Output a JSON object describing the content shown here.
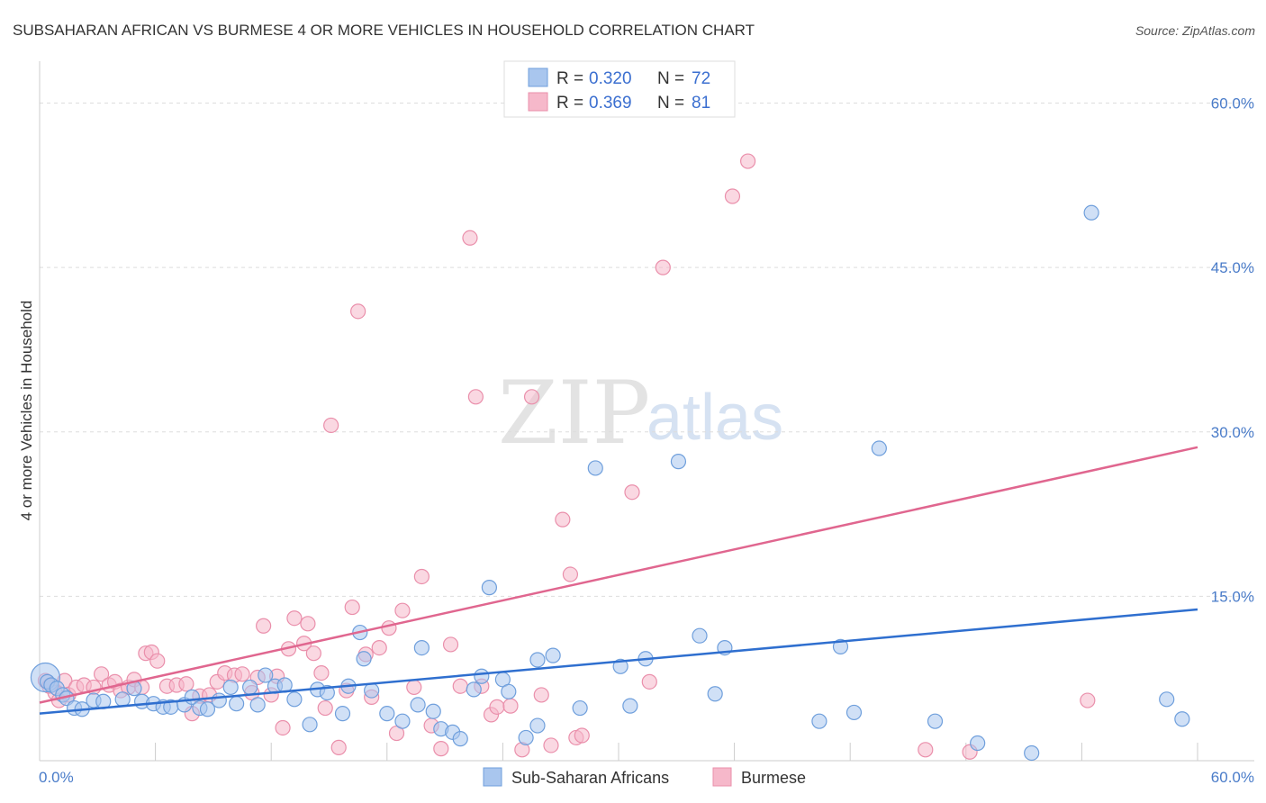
{
  "header": {
    "title": "SUBSAHARAN AFRICAN VS BURMESE 4 OR MORE VEHICLES IN HOUSEHOLD CORRELATION CHART",
    "source": "Source: ZipAtlas.com"
  },
  "watermark": {
    "zip": "ZIP",
    "atlas": "atlas"
  },
  "legend": {
    "r_label": "R =",
    "n_label": "N =",
    "rows": [
      {
        "r": "0.320",
        "n": "72",
        "color": "#a9c6ee"
      },
      {
        "r": "0.369",
        "n": "81",
        "color": "#f6b8ca"
      }
    ]
  },
  "bottom_legend": {
    "items": [
      {
        "label": "Sub-Saharan Africans",
        "color": "#a9c6ee"
      },
      {
        "label": "Burmese",
        "color": "#f6b8ca"
      }
    ]
  },
  "colors": {
    "series1_fill": "#a9c6ee",
    "series1_stroke": "#6f9fdc",
    "series1_line": "#2f6fcf",
    "series2_fill": "#f6b8ca",
    "series2_stroke": "#ea8fab",
    "series2_line": "#e0668f",
    "grid": "#dddddd",
    "tick_label": "#4a7cc9"
  },
  "chart_data": {
    "type": "scatter",
    "title": "SUBSAHARAN AFRICAN VS BURMESE 4 OR MORE VEHICLES IN HOUSEHOLD CORRELATION CHART",
    "xlabel": "",
    "ylabel": "4 or more Vehicles in Household",
    "xlim": [
      0,
      60
    ],
    "ylim": [
      0,
      63
    ],
    "x_tick_labels": [
      "0.0%",
      "60.0%"
    ],
    "y_ticks": [
      15,
      30,
      45,
      60
    ],
    "y_tick_labels": [
      "15.0%",
      "30.0%",
      "45.0%",
      "60.0%"
    ],
    "grid": true,
    "legend_position": "top-center",
    "series": [
      {
        "name": "Sub-Saharan Africans",
        "r": 0.32,
        "n": 72,
        "trend": {
          "x": [
            0,
            60
          ],
          "y": [
            4.3,
            13.8
          ]
        },
        "points": [
          {
            "x": 0.3,
            "y": 7.6,
            "big": true
          },
          {
            "x": 0.4,
            "y": 7.2
          },
          {
            "x": 0.6,
            "y": 6.9
          },
          {
            "x": 0.9,
            "y": 6.6
          },
          {
            "x": 1.2,
            "y": 6.0
          },
          {
            "x": 1.4,
            "y": 5.7
          },
          {
            "x": 1.8,
            "y": 4.8
          },
          {
            "x": 2.2,
            "y": 4.7
          },
          {
            "x": 2.8,
            "y": 5.5
          },
          {
            "x": 3.3,
            "y": 5.4
          },
          {
            "x": 4.3,
            "y": 5.6
          },
          {
            "x": 4.9,
            "y": 6.6
          },
          {
            "x": 5.3,
            "y": 5.4
          },
          {
            "x": 5.9,
            "y": 5.2
          },
          {
            "x": 6.4,
            "y": 4.9
          },
          {
            "x": 6.8,
            "y": 4.9
          },
          {
            "x": 7.5,
            "y": 5.1
          },
          {
            "x": 7.9,
            "y": 5.8
          },
          {
            "x": 8.3,
            "y": 4.8
          },
          {
            "x": 8.7,
            "y": 4.7
          },
          {
            "x": 9.3,
            "y": 5.5
          },
          {
            "x": 9.9,
            "y": 6.7
          },
          {
            "x": 10.2,
            "y": 5.2
          },
          {
            "x": 10.9,
            "y": 6.7
          },
          {
            "x": 11.3,
            "y": 5.1
          },
          {
            "x": 11.7,
            "y": 7.8
          },
          {
            "x": 12.2,
            "y": 6.8
          },
          {
            "x": 12.7,
            "y": 6.9
          },
          {
            "x": 13.2,
            "y": 5.6
          },
          {
            "x": 14.0,
            "y": 3.3
          },
          {
            "x": 14.4,
            "y": 6.5
          },
          {
            "x": 14.9,
            "y": 6.2
          },
          {
            "x": 15.7,
            "y": 4.3
          },
          {
            "x": 16.0,
            "y": 6.8
          },
          {
            "x": 16.6,
            "y": 11.7
          },
          {
            "x": 16.8,
            "y": 9.3
          },
          {
            "x": 17.2,
            "y": 6.4
          },
          {
            "x": 18.0,
            "y": 4.3
          },
          {
            "x": 18.8,
            "y": 3.6
          },
          {
            "x": 19.6,
            "y": 5.1
          },
          {
            "x": 19.8,
            "y": 10.3
          },
          {
            "x": 20.4,
            "y": 4.5
          },
          {
            "x": 20.8,
            "y": 2.9
          },
          {
            "x": 21.4,
            "y": 2.6
          },
          {
            "x": 21.8,
            "y": 2.0
          },
          {
            "x": 22.5,
            "y": 6.5
          },
          {
            "x": 22.9,
            "y": 7.7
          },
          {
            "x": 23.3,
            "y": 15.8
          },
          {
            "x": 24.0,
            "y": 7.4
          },
          {
            "x": 24.3,
            "y": 6.3
          },
          {
            "x": 25.2,
            "y": 2.1
          },
          {
            "x": 25.8,
            "y": 3.2
          },
          {
            "x": 25.8,
            "y": 9.2
          },
          {
            "x": 26.6,
            "y": 9.6
          },
          {
            "x": 28.0,
            "y": 4.8
          },
          {
            "x": 28.8,
            "y": 26.7
          },
          {
            "x": 30.1,
            "y": 8.6
          },
          {
            "x": 30.6,
            "y": 5.0
          },
          {
            "x": 31.4,
            "y": 9.3
          },
          {
            "x": 33.1,
            "y": 27.3
          },
          {
            "x": 34.2,
            "y": 11.4
          },
          {
            "x": 35.0,
            "y": 6.1
          },
          {
            "x": 35.5,
            "y": 10.3
          },
          {
            "x": 40.4,
            "y": 3.6
          },
          {
            "x": 41.5,
            "y": 10.4
          },
          {
            "x": 42.2,
            "y": 4.4
          },
          {
            "x": 43.5,
            "y": 28.5
          },
          {
            "x": 46.4,
            "y": 3.6
          },
          {
            "x": 48.6,
            "y": 1.6
          },
          {
            "x": 51.4,
            "y": 0.7
          },
          {
            "x": 54.5,
            "y": 50.0
          },
          {
            "x": 58.4,
            "y": 5.6
          },
          {
            "x": 59.2,
            "y": 3.8
          }
        ]
      },
      {
        "name": "Burmese",
        "r": 0.369,
        "n": 81,
        "trend": {
          "x": [
            0,
            60
          ],
          "y": [
            5.3,
            28.6
          ]
        },
        "points": [
          {
            "x": 0.3,
            "y": 7.3
          },
          {
            "x": 0.5,
            "y": 6.8
          },
          {
            "x": 0.8,
            "y": 6.2
          },
          {
            "x": 1.0,
            "y": 5.5
          },
          {
            "x": 1.3,
            "y": 7.3
          },
          {
            "x": 1.5,
            "y": 6.0
          },
          {
            "x": 1.9,
            "y": 6.7
          },
          {
            "x": 2.3,
            "y": 6.9
          },
          {
            "x": 2.8,
            "y": 6.7
          },
          {
            "x": 3.2,
            "y": 7.9
          },
          {
            "x": 3.6,
            "y": 6.9
          },
          {
            "x": 3.9,
            "y": 7.2
          },
          {
            "x": 4.2,
            "y": 6.4
          },
          {
            "x": 4.6,
            "y": 6.7
          },
          {
            "x": 4.9,
            "y": 7.4
          },
          {
            "x": 5.3,
            "y": 6.7
          },
          {
            "x": 5.5,
            "y": 9.8
          },
          {
            "x": 5.8,
            "y": 9.9
          },
          {
            "x": 6.1,
            "y": 9.1
          },
          {
            "x": 6.6,
            "y": 6.8
          },
          {
            "x": 7.1,
            "y": 6.9
          },
          {
            "x": 7.6,
            "y": 7.0
          },
          {
            "x": 7.9,
            "y": 4.3
          },
          {
            "x": 8.3,
            "y": 5.9
          },
          {
            "x": 8.8,
            "y": 6.0
          },
          {
            "x": 9.2,
            "y": 7.2
          },
          {
            "x": 9.6,
            "y": 8.0
          },
          {
            "x": 10.1,
            "y": 7.8
          },
          {
            "x": 10.5,
            "y": 7.9
          },
          {
            "x": 11.0,
            "y": 6.2
          },
          {
            "x": 11.3,
            "y": 7.6
          },
          {
            "x": 11.6,
            "y": 12.3
          },
          {
            "x": 12.0,
            "y": 6.0
          },
          {
            "x": 12.3,
            "y": 7.7
          },
          {
            "x": 12.6,
            "y": 3.0
          },
          {
            "x": 12.9,
            "y": 10.2
          },
          {
            "x": 13.2,
            "y": 13.0
          },
          {
            "x": 13.7,
            "y": 10.7
          },
          {
            "x": 13.9,
            "y": 12.5
          },
          {
            "x": 14.2,
            "y": 9.8
          },
          {
            "x": 14.6,
            "y": 8.0
          },
          {
            "x": 14.8,
            "y": 4.8
          },
          {
            "x": 15.1,
            "y": 30.6
          },
          {
            "x": 15.5,
            "y": 1.2
          },
          {
            "x": 15.9,
            "y": 6.4
          },
          {
            "x": 16.2,
            "y": 14.0
          },
          {
            "x": 16.5,
            "y": 41.0
          },
          {
            "x": 16.9,
            "y": 9.7
          },
          {
            "x": 17.2,
            "y": 5.8
          },
          {
            "x": 17.6,
            "y": 10.3
          },
          {
            "x": 18.1,
            "y": 12.1
          },
          {
            "x": 18.5,
            "y": 2.5
          },
          {
            "x": 18.8,
            "y": 13.7
          },
          {
            "x": 19.4,
            "y": 6.7
          },
          {
            "x": 19.8,
            "y": 16.8
          },
          {
            "x": 20.3,
            "y": 3.2
          },
          {
            "x": 20.8,
            "y": 1.1
          },
          {
            "x": 21.3,
            "y": 10.6
          },
          {
            "x": 21.8,
            "y": 6.8
          },
          {
            "x": 22.3,
            "y": 47.7
          },
          {
            "x": 22.6,
            "y": 33.2
          },
          {
            "x": 22.9,
            "y": 6.8
          },
          {
            "x": 23.4,
            "y": 4.2
          },
          {
            "x": 23.7,
            "y": 4.9
          },
          {
            "x": 24.4,
            "y": 5.0
          },
          {
            "x": 25.0,
            "y": 1.0
          },
          {
            "x": 25.5,
            "y": 33.2
          },
          {
            "x": 26.0,
            "y": 6.0
          },
          {
            "x": 26.5,
            "y": 1.4
          },
          {
            "x": 27.1,
            "y": 22.0
          },
          {
            "x": 27.5,
            "y": 17.0
          },
          {
            "x": 27.8,
            "y": 2.1
          },
          {
            "x": 28.1,
            "y": 2.3
          },
          {
            "x": 30.7,
            "y": 24.5
          },
          {
            "x": 31.6,
            "y": 7.2
          },
          {
            "x": 32.3,
            "y": 45.0
          },
          {
            "x": 35.9,
            "y": 51.5
          },
          {
            "x": 36.7,
            "y": 54.7
          },
          {
            "x": 45.9,
            "y": 1.0
          },
          {
            "x": 48.2,
            "y": 0.8
          },
          {
            "x": 54.3,
            "y": 5.5
          }
        ]
      }
    ]
  }
}
